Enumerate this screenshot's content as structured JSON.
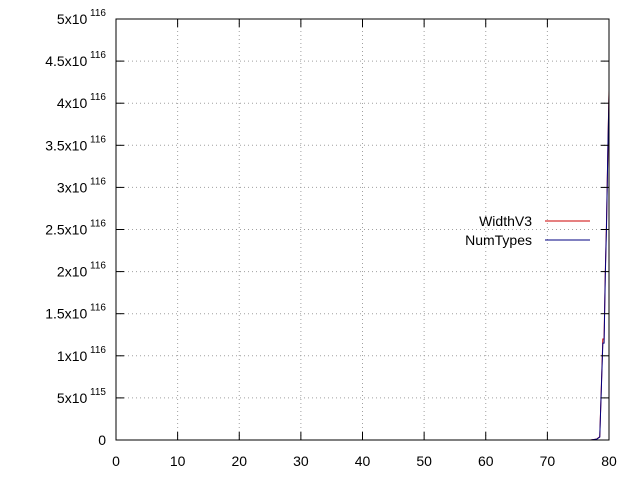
{
  "chart_data": {
    "type": "line",
    "title": "",
    "xlabel": "",
    "ylabel": "",
    "xlim": [
      0,
      80
    ],
    "ylim": [
      0,
      5e+116
    ],
    "grid": true,
    "legend_position": "right",
    "x_ticks": [
      {
        "value": 0,
        "label": "0"
      },
      {
        "value": 10,
        "label": "10"
      },
      {
        "value": 20,
        "label": "20"
      },
      {
        "value": 30,
        "label": "30"
      },
      {
        "value": 40,
        "label": "40"
      },
      {
        "value": 50,
        "label": "50"
      },
      {
        "value": 60,
        "label": "60"
      },
      {
        "value": 70,
        "label": "70"
      },
      {
        "value": 80,
        "label": "80"
      }
    ],
    "y_ticks": [
      {
        "value": 0,
        "mantissa": "0",
        "exponent": ""
      },
      {
        "value": 5e+115,
        "mantissa": "5x10",
        "exponent": "115"
      },
      {
        "value": 1e+116,
        "mantissa": "1x10",
        "exponent": "116"
      },
      {
        "value": 1.5e+116,
        "mantissa": "1.5x10",
        "exponent": "116"
      },
      {
        "value": 2e+116,
        "mantissa": "2x10",
        "exponent": "116"
      },
      {
        "value": 2.5e+116,
        "mantissa": "2.5x10",
        "exponent": "116"
      },
      {
        "value": 3e+116,
        "mantissa": "3x10",
        "exponent": "116"
      },
      {
        "value": 3.5e+116,
        "mantissa": "3.5x10",
        "exponent": "116"
      },
      {
        "value": 4e+116,
        "mantissa": "4x10",
        "exponent": "116"
      },
      {
        "value": 4.5e+116,
        "mantissa": "4.5x10",
        "exponent": "116"
      },
      {
        "value": 5e+116,
        "mantissa": "5x10",
        "exponent": "116"
      }
    ],
    "series": [
      {
        "name": "WidthV3",
        "color": "#cc0000",
        "x": [
          0,
          70,
          77,
          78,
          78.5,
          79,
          79.2,
          79.4,
          79.6,
          79.8,
          80
        ],
        "y": [
          0,
          0,
          0,
          1e+114,
          4e+114,
          1.2e+116,
          1.2e+116,
          2e+116,
          2.6e+116,
          3.4e+116,
          4.15e+116
        ]
      },
      {
        "name": "NumTypes",
        "color": "#000080",
        "x": [
          0,
          70,
          77,
          78,
          78.5,
          79,
          79.2,
          79.4,
          79.6,
          79.8,
          80
        ],
        "y": [
          0,
          0,
          0,
          1e+114,
          3.5e+114,
          1.15e+116,
          1.15e+116,
          1.95e+116,
          2.55e+116,
          3.4e+116,
          4.1e+116
        ]
      }
    ]
  }
}
